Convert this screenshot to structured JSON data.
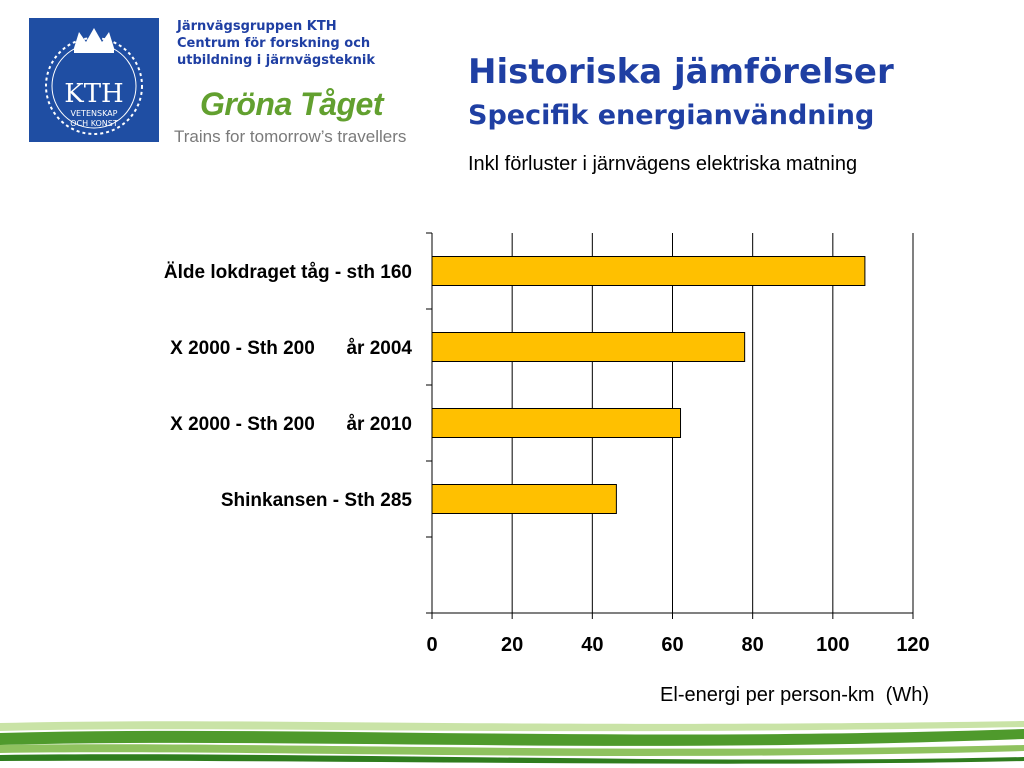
{
  "org": {
    "line1": "Järnvägsgruppen KTH",
    "line2": "Centrum för forskning och",
    "line3": "utbildning i järnvägsteknik",
    "kth_logo_text": "KTH",
    "kth_logo_line1": "VETENSKAP",
    "kth_logo_line2": "OCH KONST"
  },
  "brand": {
    "name": "Gröna Tåget",
    "tagline": "Trains for tomorrow’s travellers"
  },
  "slide": {
    "title": "Historiska jämförelser",
    "subtitle": "Specifik energianvändning",
    "note": "Inkl förluster i järnvägens elektriska matning"
  },
  "colors": {
    "title": "#1f3fa3",
    "bar": "#ffc000",
    "kth_blue": "#1f4ea3",
    "brand_green": "#62a02f"
  },
  "chart_data": {
    "type": "bar",
    "orientation": "horizontal",
    "categories": [
      "Älde lokdraget tåg - sth 160",
      "X 2000 - Sth 200      år 2004",
      "X 2000 - Sth 200      år 2010",
      "Shinkansen - Sth 285"
    ],
    "values": [
      108,
      78,
      62,
      46
    ],
    "xlabel": "El-energi per person-km  (Wh)",
    "xlim": [
      0,
      120
    ],
    "xticks": [
      0,
      20,
      40,
      60,
      80,
      100,
      120
    ],
    "grid": "vertical"
  }
}
